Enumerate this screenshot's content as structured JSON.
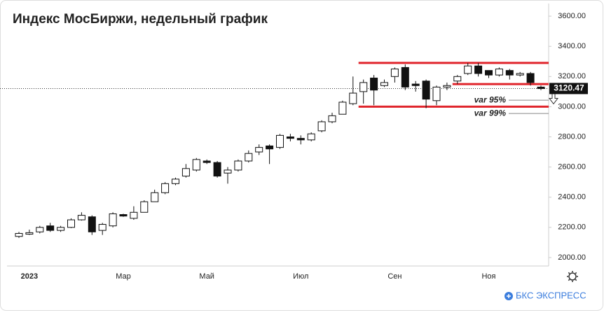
{
  "chart_data": {
    "type": "candlestick",
    "title": "Индекс МосБиржи, недельный график",
    "categories": [
      null,
      "2023",
      null,
      null,
      null,
      null,
      null,
      null,
      null,
      null,
      "Мар",
      null,
      null,
      null,
      null,
      null,
      null,
      null,
      "Май",
      null,
      null,
      null,
      null,
      null,
      null,
      null,
      null,
      "Июл",
      null,
      null,
      null,
      null,
      null,
      null,
      null,
      null,
      "Сен",
      null,
      null,
      null,
      null,
      null,
      null,
      null,
      null,
      "Ноя",
      null,
      null,
      null,
      null,
      null
    ],
    "open": [
      2140,
      2155,
      2170,
      2210,
      2180,
      2200,
      2250,
      2270,
      2180,
      2210,
      2285,
      2260,
      2300,
      2370,
      2430,
      2490,
      2540,
      2580,
      2640,
      2630,
      2560,
      2580,
      2640,
      2700,
      2740,
      2730,
      2800,
      2790,
      2780,
      2840,
      2900,
      2950,
      3020,
      3100,
      3190,
      3140,
      3200,
      3260,
      3150,
      3170,
      3040,
      3130,
      3170,
      3220,
      3270,
      3240,
      3210,
      3240,
      3210,
      3220,
      3130
    ],
    "high": [
      2170,
      2185,
      2210,
      2230,
      2210,
      2260,
      2300,
      2280,
      2230,
      2300,
      2290,
      2340,
      2380,
      2450,
      2500,
      2530,
      2620,
      2660,
      2650,
      2640,
      2600,
      2650,
      2710,
      2750,
      2750,
      2820,
      2820,
      2810,
      2830,
      2910,
      2960,
      3040,
      3200,
      3180,
      3210,
      3180,
      3260,
      3280,
      3170,
      3180,
      3140,
      3160,
      3210,
      3290,
      3290,
      3230,
      3260,
      3250,
      3230,
      3230,
      3140
    ],
    "low": [
      2130,
      2150,
      2160,
      2170,
      2170,
      2195,
      2245,
      2150,
      2150,
      2200,
      2270,
      2250,
      2300,
      2370,
      2420,
      2480,
      2530,
      2570,
      2620,
      2530,
      2490,
      2570,
      2630,
      2680,
      2620,
      2720,
      2770,
      2750,
      2770,
      2830,
      2890,
      2950,
      3010,
      3020,
      3010,
      3130,
      3160,
      3110,
      3100,
      2990,
      3010,
      3110,
      3150,
      3210,
      3200,
      3190,
      3200,
      3180,
      3200,
      3140,
      3110
    ],
    "close": [
      2160,
      2165,
      2200,
      2180,
      2200,
      2250,
      2280,
      2170,
      2220,
      2290,
      2275,
      2300,
      2370,
      2430,
      2490,
      2520,
      2590,
      2650,
      2630,
      2540,
      2580,
      2640,
      2690,
      2730,
      2720,
      2810,
      2790,
      2780,
      2820,
      2900,
      2940,
      3030,
      3090,
      3160,
      3110,
      3160,
      3250,
      3130,
      3140,
      3050,
      3130,
      3140,
      3200,
      3270,
      3220,
      3210,
      3250,
      3210,
      3220,
      3160,
      3120
    ],
    "ylim": [
      1944,
      3684
    ],
    "yticks": [
      {
        "value": 2000,
        "label": "2000.00"
      },
      {
        "value": 2200,
        "label": "2200.00"
      },
      {
        "value": 2400,
        "label": "2400.00"
      },
      {
        "value": 2600,
        "label": "2600.00"
      },
      {
        "value": 2800,
        "label": "2800.00"
      },
      {
        "value": 3000,
        "label": "3000.00"
      },
      {
        "value": 3200,
        "label": "3200.00"
      },
      {
        "value": 3400,
        "label": "3400.00"
      },
      {
        "value": 3600,
        "label": "3600.00"
      }
    ],
    "last_price": 3120.47,
    "levels": [
      {
        "value": 3290,
        "from": 33,
        "color": "#e0242b"
      },
      {
        "value": 3150,
        "from": 42,
        "color": "#e0242b"
      },
      {
        "value": 3000,
        "from": 33,
        "color": "#e0242b"
      }
    ],
    "annotations": [
      {
        "text": "var 95%",
        "value": 3043
      },
      {
        "text": "var 99%",
        "value": 2955
      }
    ],
    "up_color": "#ffffff",
    "down_color": "#111111"
  },
  "brand": "БКС ЭКСПРЕСС"
}
